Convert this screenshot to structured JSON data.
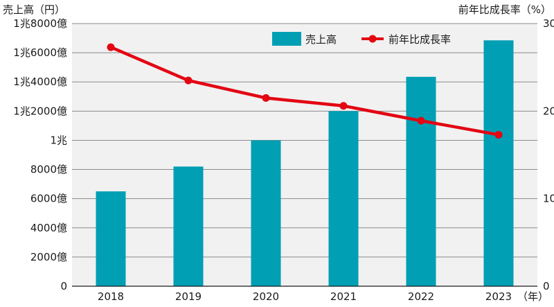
{
  "chart_data": {
    "type": "bar",
    "categories": [
      "2018",
      "2019",
      "2020",
      "2021",
      "2022",
      "2023"
    ],
    "series": [
      {
        "name": "売上高",
        "kind": "bar",
        "axis": "left",
        "color": "#009fb4",
        "values": [
          6500,
          8200,
          10000,
          12000,
          14350,
          16850
        ]
      },
      {
        "name": "前年比成長率",
        "kind": "line",
        "axis": "right",
        "color": "#e30613",
        "values": [
          27.3,
          23.5,
          21.5,
          20.6,
          18.9,
          17.3
        ]
      }
    ],
    "y_left": {
      "label": "売上高（円）",
      "range": [
        0,
        18000
      ],
      "ticks": [
        {
          "value": 0,
          "label": "0"
        },
        {
          "value": 2000,
          "label": "2000億"
        },
        {
          "value": 4000,
          "label": "4000億"
        },
        {
          "value": 6000,
          "label": "6000億"
        },
        {
          "value": 8000,
          "label": "8000億"
        },
        {
          "value": 10000,
          "label": "1兆"
        },
        {
          "value": 12000,
          "label": "1兆2000億"
        },
        {
          "value": 14000,
          "label": "1兆4000億"
        },
        {
          "value": 16000,
          "label": "1兆6000億"
        },
        {
          "value": 18000,
          "label": "1兆8000億"
        }
      ]
    },
    "y_right": {
      "label": "前年比成長率（%）",
      "range": [
        0,
        30
      ],
      "ticks": [
        {
          "value": 0,
          "label": "0"
        },
        {
          "value": 10,
          "label": "10"
        },
        {
          "value": 20,
          "label": "20"
        },
        {
          "value": 30,
          "label": "30"
        }
      ]
    },
    "x_unit": "（年）",
    "grid": "horizontal",
    "legend_position": "top-right"
  }
}
